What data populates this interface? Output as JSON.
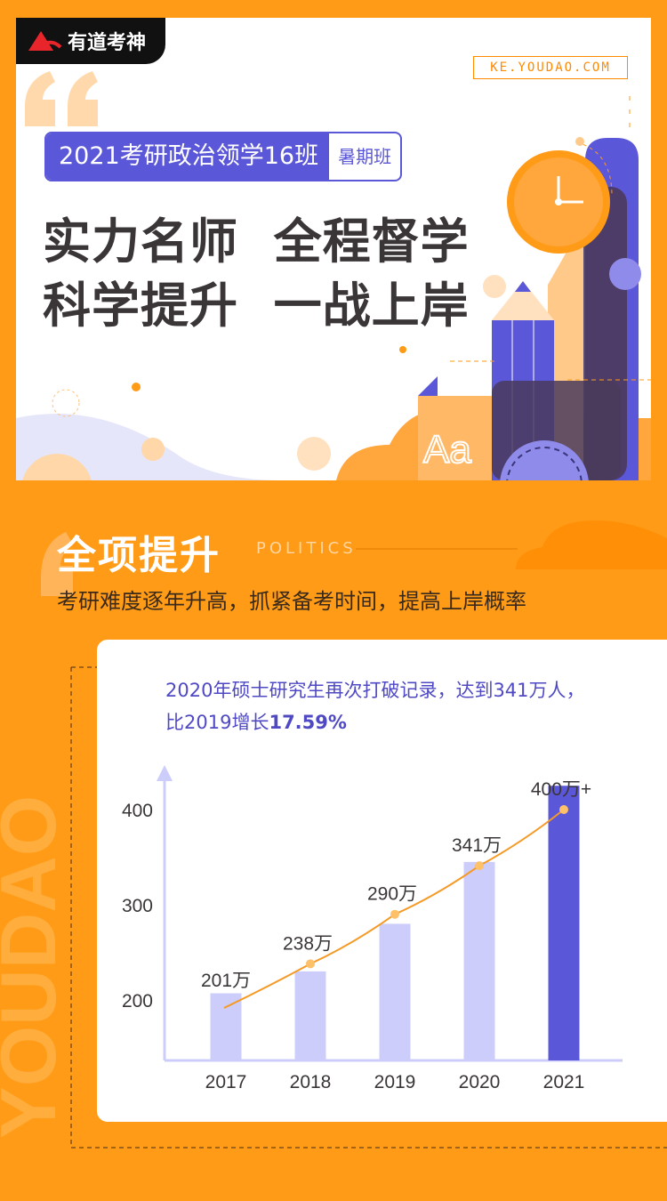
{
  "brand": {
    "logo_text": "有道考神",
    "site": "KE.YOUDAO.COM"
  },
  "course": {
    "name": "2021考研政治领学16班",
    "tag": "暑期班"
  },
  "headline": {
    "line1": "实力名师  全程督学",
    "line2": "科学提升  一战上岸"
  },
  "hero_art": {
    "letters": "Aa"
  },
  "section": {
    "title": "全项提升",
    "title_en": "POLITICS",
    "subtitle": "考研难度逐年升高，抓紧备考时间，提高上岸概率",
    "watermark": "YOUDAO"
  },
  "colors": {
    "orange": "#ff9b16",
    "purple": "#5b57d9",
    "lavender": "#cdcdfb",
    "line": "#f59a26"
  },
  "chart_data": {
    "type": "bar",
    "title_line1": "2020年硕士研究生再次打破记录，达到341万人，",
    "title_line2_prefix": "比2019增长",
    "title_line2_highlight": "17.59%",
    "categories": [
      "2017",
      "2018",
      "2019",
      "2020",
      "2021"
    ],
    "values": [
      201,
      238,
      290,
      341,
      400
    ],
    "bar_top_values": [
      207,
      230,
      280,
      345,
      425
    ],
    "data_labels": [
      "201万",
      "238万",
      "290万",
      "341万",
      "400万+"
    ],
    "yticks": [
      200,
      300,
      400
    ],
    "ylim": [
      132,
      440
    ],
    "highlight_index": 4,
    "line_overlay": true
  }
}
